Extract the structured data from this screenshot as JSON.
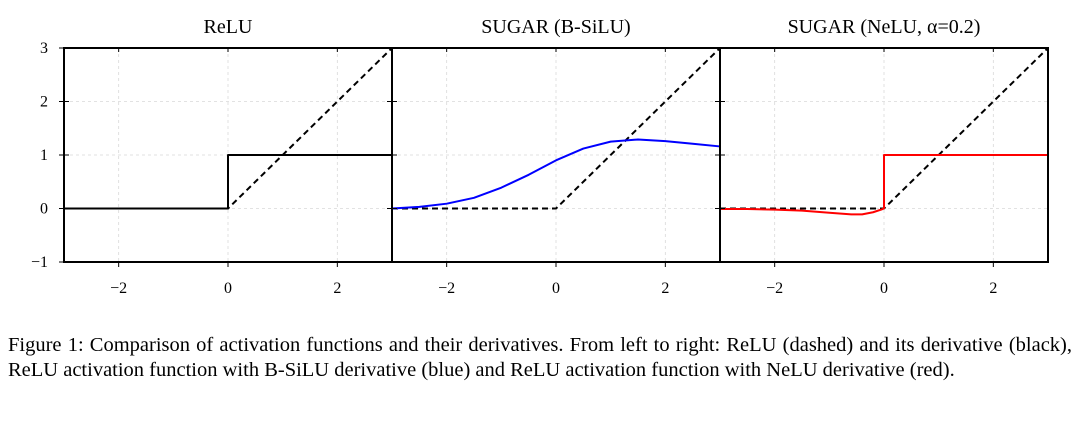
{
  "figure": {
    "chart_data": [
      {
        "type": "line",
        "title": "ReLU",
        "xlabel": "",
        "ylabel": "",
        "xlim": [
          -3.0,
          3.0
        ],
        "ylim": [
          -1,
          3
        ],
        "xticks": [
          -2,
          0,
          2
        ],
        "xtick_labels": [
          "−2",
          "0",
          "2"
        ],
        "yticks": [
          -1,
          0,
          1,
          2,
          3
        ],
        "ytick_labels": [
          "−1",
          "0",
          "1",
          "2",
          "3"
        ],
        "grid": true,
        "series": [
          {
            "style": "dashed",
            "color": "#000000",
            "x": [
              -3,
              0,
              3
            ],
            "y": [
              0,
              0,
              3
            ]
          },
          {
            "style": "solid",
            "color": "#000000",
            "x": [
              -3,
              0,
              0,
              3
            ],
            "y": [
              0,
              0,
              1,
              1
            ]
          }
        ]
      },
      {
        "type": "line",
        "title": "SUGAR (B-SiLU)",
        "xlabel": "",
        "ylabel": "",
        "xlim": [
          -3.0,
          3.0
        ],
        "ylim": [
          -1,
          3
        ],
        "xticks": [
          -2,
          0,
          2
        ],
        "xtick_labels": [
          "−2",
          "0",
          "2"
        ],
        "yticks": [
          -1,
          0,
          1,
          2,
          3
        ],
        "ytick_labels": [
          "−1",
          "0",
          "1",
          "2",
          "3"
        ],
        "grid": true,
        "series": [
          {
            "style": "dashed",
            "color": "#000000",
            "x": [
              -3,
              0,
              3
            ],
            "y": [
              0,
              0,
              3
            ]
          },
          {
            "style": "solid",
            "color": "#0000ff",
            "x": [
              -3,
              -2.5,
              -2,
              -1.5,
              -1,
              -0.5,
              0,
              0.5,
              1,
              1.5,
              2,
              2.5,
              3
            ],
            "y": [
              0.0,
              0.03,
              0.09,
              0.2,
              0.39,
              0.63,
              0.9,
              1.12,
              1.25,
              1.29,
              1.26,
              1.21,
              1.16
            ]
          }
        ]
      },
      {
        "type": "line",
        "title": "SUGAR (NeLU, α=0.2)",
        "xlabel": "",
        "ylabel": "",
        "xlim": [
          -3.0,
          3.0
        ],
        "ylim": [
          -1,
          3
        ],
        "xticks": [
          -2,
          0,
          2
        ],
        "xtick_labels": [
          "−2",
          "0",
          "2"
        ],
        "yticks": [
          -1,
          0,
          1,
          2,
          3
        ],
        "ytick_labels": [
          "−1",
          "0",
          "1",
          "2",
          "3"
        ],
        "grid": true,
        "series": [
          {
            "style": "dashed",
            "color": "#000000",
            "x": [
              -3,
              0,
              3
            ],
            "y": [
              0,
              0,
              3
            ]
          },
          {
            "style": "solid",
            "color": "#ff0000",
            "x": [
              -3,
              -2.5,
              -2,
              -1.5,
              -1,
              -0.6,
              -0.4,
              -0.2,
              -0.05,
              0,
              0,
              3
            ],
            "y": [
              -0.01,
              -0.01,
              -0.02,
              -0.04,
              -0.08,
              -0.11,
              -0.11,
              -0.07,
              -0.02,
              0,
              1,
              1
            ]
          }
        ]
      }
    ]
  },
  "caption": "Figure 1: Comparison of activation functions and their derivatives. From left to right: ReLU (dashed) and its derivative (black), ReLU activation function with B-SiLU derivative (blue) and ReLU activation function with NeLU derivative (red)."
}
